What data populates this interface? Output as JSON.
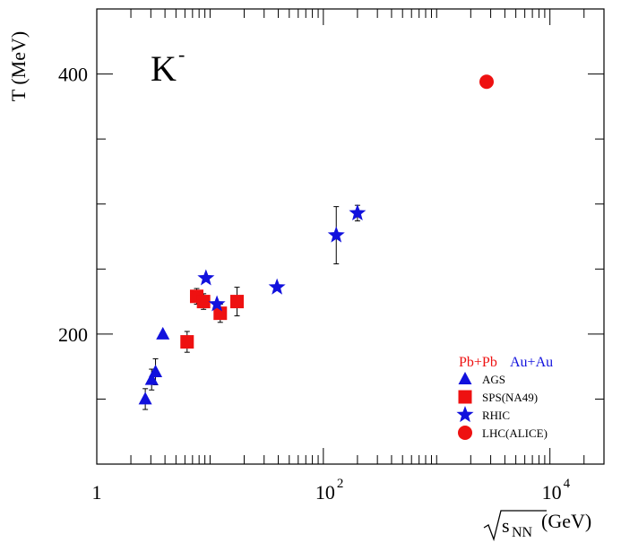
{
  "chart_data": {
    "type": "scatter",
    "title": "K",
    "title_superscript": "-",
    "xlabel_sqrt": "s",
    "xlabel_sub": "NN",
    "xlabel_unit": "(GeV)",
    "ylabel": "T (MeV)",
    "x_scale": "log",
    "xlim": [
      1,
      30000
    ],
    "ylim": [
      100,
      450
    ],
    "x_ticks": [
      {
        "value": 1,
        "base": "1",
        "exp": ""
      },
      {
        "value": 100,
        "base": "10",
        "exp": "2"
      },
      {
        "value": 10000,
        "base": "10",
        "exp": "4"
      }
    ],
    "y_ticks": [
      {
        "value": 200,
        "label": "200"
      },
      {
        "value": 400,
        "label": "400"
      }
    ],
    "legend": {
      "placement": "bottom-right",
      "header": [
        {
          "text": "Pb+Pb",
          "color": "#ee1111"
        },
        {
          "text": "Au+Au",
          "color": "#1111dd"
        }
      ]
    },
    "series": [
      {
        "name": "AGS",
        "marker": "triangle",
        "color": "#1111dd",
        "points": [
          {
            "x": 2.68,
            "y": 150,
            "err": 8
          },
          {
            "x": 3.05,
            "y": 165,
            "err": 8
          },
          {
            "x": 3.3,
            "y": 171,
            "err": 10
          },
          {
            "x": 3.83,
            "y": 200,
            "err": 0
          }
        ]
      },
      {
        "name": "SPS(NA49)",
        "marker": "square",
        "color": "#ee1111",
        "points": [
          {
            "x": 6.27,
            "y": 194,
            "err": 8
          },
          {
            "x": 7.62,
            "y": 229,
            "err": 6
          },
          {
            "x": 8.76,
            "y": 225,
            "err": 6
          },
          {
            "x": 12.3,
            "y": 216,
            "err": 7
          },
          {
            "x": 17.3,
            "y": 225,
            "err": 11
          }
        ]
      },
      {
        "name": "RHIC",
        "marker": "star",
        "color": "#1111dd",
        "points": [
          {
            "x": 9.2,
            "y": 243,
            "err": 0
          },
          {
            "x": 11.5,
            "y": 223,
            "err": 0
          },
          {
            "x": 39,
            "y": 236,
            "err": 0
          },
          {
            "x": 130,
            "y": 276,
            "err": 22
          },
          {
            "x": 200,
            "y": 293,
            "err": 6
          }
        ]
      },
      {
        "name": "LHC(ALICE)",
        "marker": "circle",
        "color": "#ee1111",
        "points": [
          {
            "x": 2760,
            "y": 394,
            "err": 0
          }
        ]
      }
    ]
  }
}
